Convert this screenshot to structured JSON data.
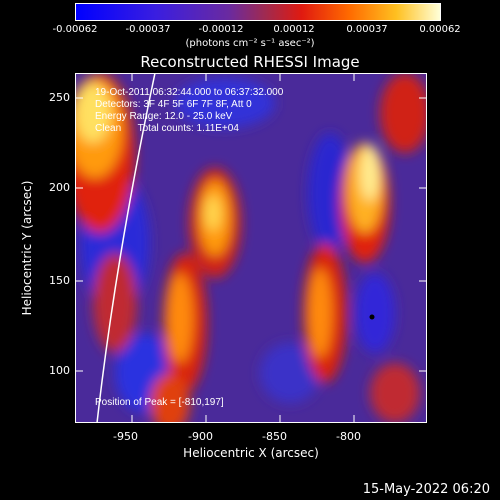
{
  "colorbar": {
    "ticks": [
      "-0.00062",
      "-0.00037",
      "-0.00012",
      "0.00012",
      "0.00037",
      "0.00062"
    ],
    "units": "(photons cm⁻² s⁻¹ asec⁻²)"
  },
  "title": "Reconstructed RHESSI Image",
  "info": {
    "time_range": "19-Oct-2011 06:32:44.000 to 06:37:32.000",
    "detectors": "Detectors: 3F 4F 5F 6F 7F 8F, Att 0",
    "energy_range": "Energy Range: 12.0 - 25.0 keV",
    "method_counts": "Clean      Total counts: 1.11E+04"
  },
  "peak_label": "Position of Peak = [-810,197]",
  "x_axis": {
    "label": "Heliocentric X (arcsec)",
    "ticks": [
      "-950",
      "-900",
      "-850",
      "-800"
    ]
  },
  "y_axis": {
    "label": "Heliocentric Y (arcsec)",
    "ticks": [
      "250",
      "200",
      "150",
      "100"
    ]
  },
  "footer_date": "15-May-2022 06:20",
  "colors": {
    "background": "#000000",
    "axes": "#ffffff",
    "limb_line": "#ffffff",
    "colormap": [
      "#0000ff",
      "#5533cc",
      "#7a2e8c",
      "#b52a3a",
      "#ee2200",
      "#ff8800",
      "#ffdd44",
      "#ffffcc"
    ]
  }
}
